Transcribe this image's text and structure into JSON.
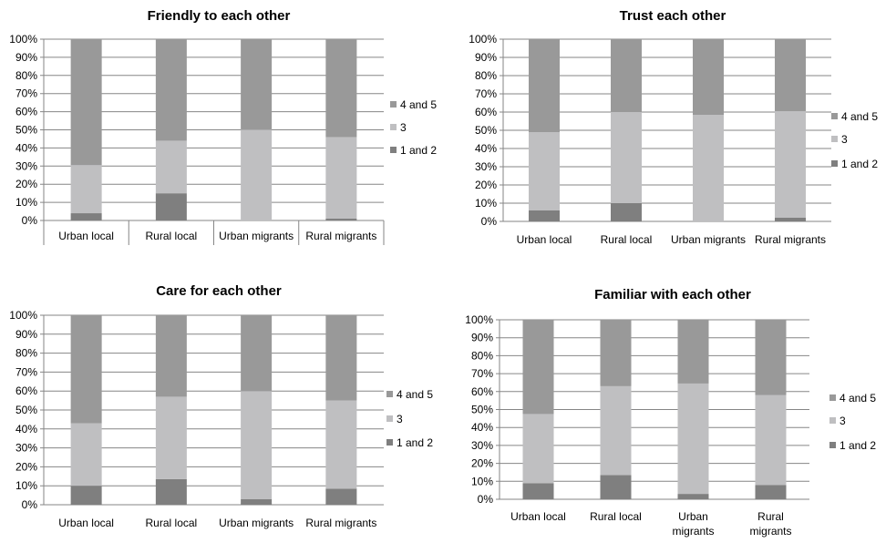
{
  "chart_data": [
    {
      "type": "bar",
      "stacked": true,
      "title": "Friendly to each other",
      "categories": [
        "Urban local",
        "Rural local",
        "Urban migrants",
        "Rural migrants"
      ],
      "ylim": [
        0,
        100
      ],
      "yticks": [
        "0%",
        "10%",
        "20%",
        "30%",
        "40%",
        "50%",
        "60%",
        "70%",
        "80%",
        "90%",
        "100%"
      ],
      "legend_position": "right",
      "series": [
        {
          "name": "1 and 2",
          "values": [
            4,
            15,
            0,
            1
          ],
          "color": "#7f7f7f"
        },
        {
          "name": "3",
          "values": [
            26.5,
            29,
            50,
            45
          ],
          "color": "#bfbfc1"
        },
        {
          "name": "4 and 5",
          "values": [
            69.5,
            56,
            50,
            54
          ],
          "color": "#999999"
        }
      ]
    },
    {
      "type": "bar",
      "stacked": true,
      "title": "Trust each other",
      "categories": [
        "Urban local",
        "Rural local",
        "Urban migrants",
        "Rural migrants"
      ],
      "ylim": [
        0,
        100
      ],
      "yticks": [
        "0%",
        "10%",
        "20%",
        "30%",
        "40%",
        "50%",
        "60%",
        "70%",
        "80%",
        "90%",
        "100%"
      ],
      "legend_position": "right",
      "series": [
        {
          "name": "1 and 2",
          "values": [
            6,
            10,
            0,
            2
          ],
          "color": "#7f7f7f"
        },
        {
          "name": "3",
          "values": [
            43,
            50,
            58.5,
            58.5
          ],
          "color": "#bfbfc1"
        },
        {
          "name": "4 and 5",
          "values": [
            51,
            40,
            41.5,
            39.5
          ],
          "color": "#999999"
        }
      ]
    },
    {
      "type": "bar",
      "stacked": true,
      "title": "Care for each other",
      "categories": [
        "Urban local",
        "Rural local",
        "Urban migrants",
        "Rural migrants"
      ],
      "ylim": [
        0,
        100
      ],
      "yticks": [
        "0%",
        "10%",
        "20%",
        "30%",
        "40%",
        "50%",
        "60%",
        "70%",
        "80%",
        "90%",
        "100%"
      ],
      "legend_position": "right",
      "series": [
        {
          "name": "1 and 2",
          "values": [
            10,
            13.5,
            3,
            8.5
          ],
          "color": "#7f7f7f"
        },
        {
          "name": "3",
          "values": [
            33,
            43.5,
            57,
            46.5
          ],
          "color": "#bfbfc1"
        },
        {
          "name": "4 and 5",
          "values": [
            57,
            43,
            40,
            45
          ],
          "color": "#999999"
        }
      ]
    },
    {
      "type": "bar",
      "stacked": true,
      "title": "Familiar with each other",
      "categories": [
        "Urban local",
        "Rural local",
        "Urban\nmigrants",
        "Rural\nmigrants"
      ],
      "ylim": [
        0,
        100
      ],
      "yticks": [
        "0%",
        "10%",
        "20%",
        "30%",
        "40%",
        "50%",
        "60%",
        "70%",
        "80%",
        "90%",
        "100%"
      ],
      "legend_position": "right",
      "series": [
        {
          "name": "1 and 2",
          "values": [
            9,
            13.5,
            3,
            8
          ],
          "color": "#7f7f7f"
        },
        {
          "name": "3",
          "values": [
            38.5,
            49.5,
            61.5,
            50
          ],
          "color": "#bfbfc1"
        },
        {
          "name": "4 and 5",
          "values": [
            52.5,
            37,
            35.5,
            42
          ],
          "color": "#999999"
        }
      ]
    }
  ]
}
